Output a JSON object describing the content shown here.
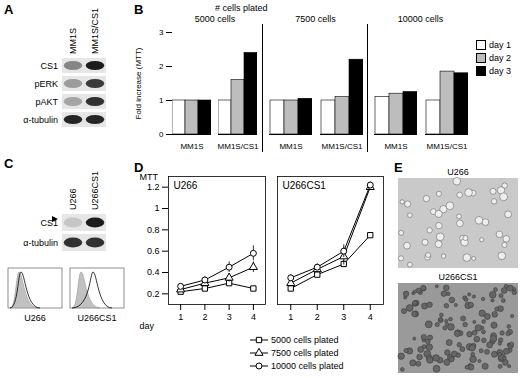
{
  "panel_letters": [
    "A",
    "B",
    "C",
    "D",
    "E"
  ],
  "blot_A": {
    "columns": [
      "MM1S",
      "MM1S/CS1"
    ],
    "rows": [
      "CS1",
      "pERK",
      "pAKT",
      "α-tubulin"
    ]
  },
  "chart_data": [
    {
      "type": "bar",
      "title": "# cells plated",
      "y_label": "Fold increase (MTT)",
      "groups": [
        "5000 cells",
        "7500 cells",
        "10000 cells"
      ],
      "categories": [
        "MM1S",
        "MM1S/CS1"
      ],
      "series": [
        {
          "name": "day 1",
          "color": "#ffffff",
          "values": [
            [
              1,
              1
            ],
            [
              1,
              1
            ],
            [
              1.1,
              1
            ]
          ]
        },
        {
          "name": "day 2",
          "color": "#bdbdbd",
          "values": [
            [
              1,
              1.6
            ],
            [
              1,
              1.1
            ],
            [
              1.2,
              1.85
            ]
          ]
        },
        {
          "name": "day 3",
          "color": "#000000",
          "values": [
            [
              1,
              2.4
            ],
            [
              1.05,
              2.2
            ],
            [
              1.25,
              1.8
            ]
          ]
        }
      ],
      "ylim": [
        0,
        3
      ],
      "yticks": [
        0,
        1,
        2,
        3
      ],
      "legend": "right"
    },
    {
      "type": "line",
      "x_label": "day",
      "y_label": "MTT",
      "x": [
        1,
        2,
        3,
        4
      ],
      "xlim": [
        0.5,
        4.5
      ],
      "xticks": [
        1,
        2,
        3,
        4
      ],
      "ylim": [
        0.1,
        1.3
      ],
      "yticks": [
        0.2,
        0.4,
        0.6,
        0.8,
        1,
        1.2
      ],
      "legend": "bottom",
      "panels": [
        {
          "title": "U266",
          "series": [
            {
              "name": "5000 cells plated",
              "marker": "square",
              "values": [
                0.22,
                0.25,
                0.3,
                0.25
              ],
              "errors": [
                0.02,
                0.02,
                0.02,
                0.02
              ]
            },
            {
              "name": "7500 cells plated",
              "marker": "triangle",
              "values": [
                0.24,
                0.3,
                0.35,
                0.45
              ],
              "errors": [
                0.02,
                0.03,
                0.04,
                0.05
              ]
            },
            {
              "name": "10000 cells plated",
              "marker": "circle",
              "values": [
                0.27,
                0.33,
                0.45,
                0.58
              ],
              "errors": [
                0.02,
                0.03,
                0.05,
                0.07
              ]
            }
          ]
        },
        {
          "title": "U266CS1",
          "series": [
            {
              "name": "5000 cells plated",
              "marker": "square",
              "values": [
                0.25,
                0.38,
                0.48,
                0.75
              ],
              "errors": [
                0.02,
                0.03,
                0.03,
                0.02
              ]
            },
            {
              "name": "7500 cells plated",
              "marker": "triangle",
              "values": [
                0.3,
                0.43,
                0.55,
                1.2
              ],
              "errors": [
                0.02,
                0.03,
                0.08,
                0.03
              ]
            },
            {
              "name": "10000 cells plated",
              "marker": "circle",
              "values": [
                0.35,
                0.45,
                0.6,
                1.22
              ],
              "errors": [
                0.03,
                0.03,
                0.06,
                0.03
              ]
            }
          ]
        }
      ]
    }
  ],
  "blot_C": {
    "columns": [
      "U266",
      "U266CS1"
    ],
    "rows": [
      "CS1",
      "α-tubulin"
    ],
    "histograms": [
      "U266",
      "U266CS1"
    ]
  },
  "images_E": [
    "U266",
    "U266CS1"
  ]
}
